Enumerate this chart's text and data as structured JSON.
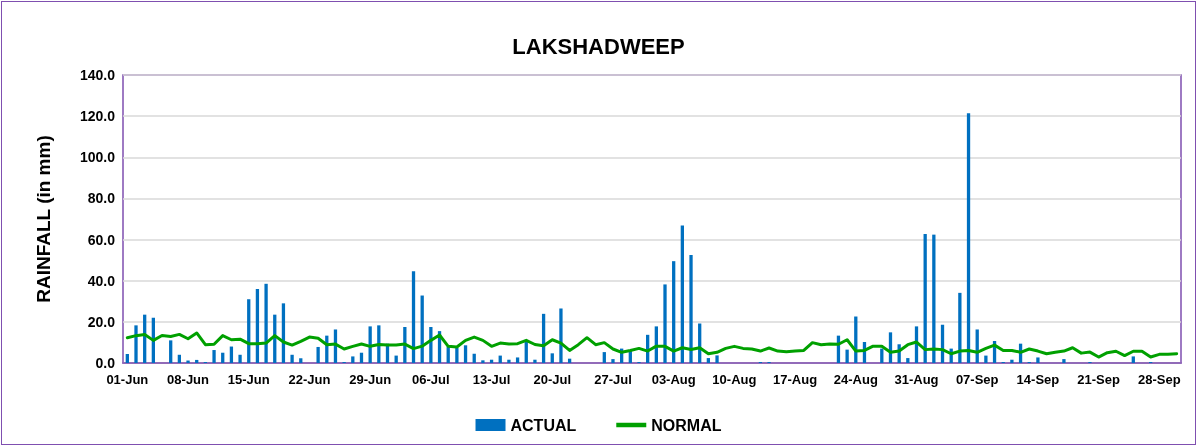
{
  "chart_data": {
    "type": "bar",
    "title": "LAKSHADWEEP",
    "ylabel": "RAINFALL (in mm)",
    "categories": [
      "01-Jun",
      null,
      null,
      null,
      null,
      null,
      null,
      "08-Jun",
      null,
      null,
      null,
      null,
      null,
      null,
      "15-Jun",
      null,
      null,
      null,
      null,
      null,
      null,
      "22-Jun",
      null,
      null,
      null,
      null,
      null,
      null,
      "29-Jun",
      null,
      null,
      null,
      null,
      null,
      null,
      "06-Jul",
      null,
      null,
      null,
      null,
      null,
      null,
      "13-Jul",
      null,
      null,
      null,
      null,
      null,
      null,
      "20-Jul",
      null,
      null,
      null,
      null,
      null,
      null,
      "27-Jul",
      null,
      null,
      null,
      null,
      null,
      null,
      "03-Aug",
      null,
      null,
      null,
      null,
      null,
      null,
      "10-Aug",
      null,
      null,
      null,
      null,
      null,
      null,
      "17-Aug",
      null,
      null,
      null,
      null,
      null,
      null,
      "24-Aug",
      null,
      null,
      null,
      null,
      null,
      null,
      "31-Aug",
      null,
      null,
      null,
      null,
      null,
      null,
      "07-Sep",
      null,
      null,
      null,
      null,
      null,
      null,
      "14-Sep",
      null,
      null,
      null,
      null,
      null,
      null,
      "21-Sep",
      null,
      null,
      null,
      null,
      null,
      null,
      "28-Sep",
      null,
      null
    ],
    "series": [
      {
        "name": "ACTUAL",
        "color": "#0070c0",
        "values": [
          4.4,
          18.3,
          23.5,
          22.0,
          0,
          11.0,
          4.0,
          1.2,
          1.5,
          0.5,
          6.3,
          5.0,
          8.0,
          4.0,
          31.0,
          36.0,
          38.5,
          23.5,
          29.0,
          4.0,
          2.3,
          0,
          7.8,
          13.3,
          16.3,
          0.5,
          3.2,
          5.0,
          17.8,
          18.3,
          9.4,
          3.6,
          17.5,
          44.6,
          32.8,
          17.5,
          15.5,
          8.0,
          7.4,
          8.6,
          4.5,
          1.3,
          1.6,
          3.6,
          1.6,
          2.7,
          10.2,
          1.6,
          23.9,
          4.7,
          26.5,
          2.1,
          0,
          0,
          0,
          5.3,
          1.9,
          7.0,
          5.8,
          0.5,
          13.7,
          17.8,
          38.2,
          49.5,
          66.8,
          52.5,
          19.2,
          2.4,
          3.7,
          0,
          0,
          0,
          0,
          0.5,
          0.5,
          0,
          0,
          0,
          0,
          0,
          0,
          0,
          13.3,
          6.5,
          22.6,
          10.2,
          0,
          7.0,
          14.9,
          9.1,
          2.4,
          17.8,
          62.7,
          62.4,
          18.6,
          7.0,
          34.1,
          121.4,
          16.3,
          3.6,
          10.7,
          0.5,
          1.6,
          9.4,
          0.5,
          2.7,
          0,
          0,
          1.9,
          0,
          0,
          0.5,
          0,
          0,
          0,
          0,
          3.2,
          0,
          0.5,
          0,
          0,
          0
        ]
      },
      {
        "name": "NORMAL",
        "type": "line",
        "color": "#00a000",
        "values": [
          12.3,
          13.3,
          13.9,
          11.0,
          13.4,
          12.9,
          13.9,
          11.8,
          14.6,
          8.9,
          9.1,
          13.3,
          11.3,
          11.6,
          9.4,
          9.4,
          9.7,
          13.3,
          10.2,
          8.7,
          10.5,
          12.6,
          12.0,
          8.9,
          9.2,
          6.8,
          8.1,
          9.2,
          8.1,
          9.0,
          8.7,
          8.7,
          9.2,
          7.0,
          8.2,
          11.0,
          13.6,
          8.1,
          7.8,
          11.0,
          12.6,
          11.0,
          8.1,
          9.7,
          9.2,
          9.4,
          11.0,
          9.0,
          8.4,
          11.3,
          9.7,
          6.1,
          8.9,
          12.3,
          8.9,
          9.9,
          6.8,
          5.2,
          6.1,
          7.1,
          5.8,
          8.2,
          8.1,
          5.8,
          7.4,
          6.6,
          7.4,
          4.5,
          5.2,
          7.1,
          8.1,
          7.1,
          6.8,
          5.8,
          7.3,
          5.8,
          5.5,
          5.8,
          6.1,
          9.9,
          8.9,
          9.2,
          9.1,
          11.3,
          5.8,
          6.1,
          8.2,
          8.1,
          5.2,
          5.8,
          8.9,
          10.2,
          6.5,
          6.8,
          6.5,
          4.5,
          5.8,
          6.1,
          5.2,
          7.1,
          8.7,
          6.1,
          6.1,
          5.2,
          6.8,
          5.8,
          4.5,
          5.2,
          5.8,
          7.4,
          4.8,
          5.3,
          2.9,
          5.0,
          5.7,
          3.6,
          5.7,
          5.7,
          2.9,
          4.2,
          4.2,
          4.5
        ]
      }
    ],
    "ylim": [
      0,
      140
    ],
    "yticks": [
      {
        "value": 0,
        "label": "0.0"
      },
      {
        "value": 20,
        "label": "20.0"
      },
      {
        "value": 40,
        "label": "40.0"
      },
      {
        "value": 60,
        "label": "60.0"
      },
      {
        "value": 80,
        "label": "80.0"
      },
      {
        "value": 100,
        "label": "100.0"
      },
      {
        "value": 120,
        "label": "120.0"
      },
      {
        "value": 140,
        "label": "140.0"
      }
    ],
    "grid": "y",
    "legend": "bottom",
    "marker": "none",
    "line_style": "solid"
  }
}
